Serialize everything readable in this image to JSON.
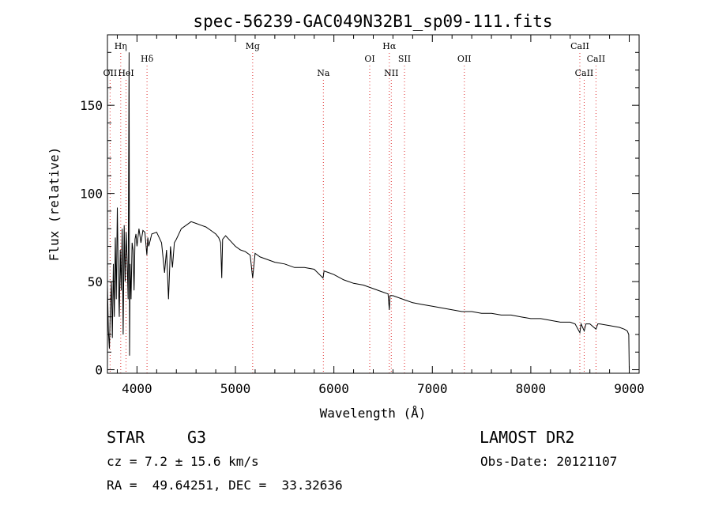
{
  "chart_data": {
    "type": "line",
    "title": "spec-56239-GAC049N32B1_sp09-111.fits",
    "xlabel": "Wavelength (Å)",
    "ylabel": "Flux (relative)",
    "xlim": [
      3700,
      9100
    ],
    "ylim": [
      -2,
      190
    ],
    "xticks": [
      4000,
      5000,
      6000,
      7000,
      8000,
      9000
    ],
    "yticks": [
      0,
      50,
      100,
      150
    ],
    "line_color": "#000000",
    "marker_color": "#e03030",
    "spectral_lines": [
      {
        "label": "OII",
        "x": 3727,
        "row": 3
      },
      {
        "label": "Hη",
        "x": 3835,
        "row": 1
      },
      {
        "label": "HeI",
        "x": 3889,
        "row": 3
      },
      {
        "label": "Hδ",
        "x": 4102,
        "row": 2
      },
      {
        "label": "Mg",
        "x": 5175,
        "row": 1
      },
      {
        "label": "Na",
        "x": 5893,
        "row": 3
      },
      {
        "label": "OI",
        "x": 6364,
        "row": 2
      },
      {
        "label": "Hα",
        "x": 6563,
        "row": 1
      },
      {
        "label": "NII",
        "x": 6583,
        "row": 3
      },
      {
        "label": "SII",
        "x": 6717,
        "row": 2
      },
      {
        "label": "OII",
        "x": 7325,
        "row": 2
      },
      {
        "label": "CaII",
        "x": 8498,
        "row": 1
      },
      {
        "label": "CaII",
        "x": 8542,
        "row": 3
      },
      {
        "label": "CaII",
        "x": 8662,
        "row": 2
      }
    ],
    "series": [
      {
        "name": "flux",
        "x": [
          3700,
          3710,
          3720,
          3730,
          3740,
          3750,
          3760,
          3770,
          3780,
          3790,
          3800,
          3810,
          3820,
          3830,
          3840,
          3850,
          3860,
          3870,
          3880,
          3890,
          3900,
          3910,
          3920,
          3925,
          3930,
          3940,
          3950,
          3960,
          3970,
          3980,
          3990,
          4000,
          4020,
          4040,
          4060,
          4080,
          4100,
          4110,
          4120,
          4150,
          4200,
          4250,
          4280,
          4300,
          4320,
          4340,
          4360,
          4380,
          4400,
          4450,
          4500,
          4550,
          4600,
          4650,
          4700,
          4750,
          4800,
          4830,
          4850,
          4861,
          4870,
          4900,
          4950,
          5000,
          5050,
          5100,
          5150,
          5175,
          5200,
          5250,
          5300,
          5400,
          5500,
          5600,
          5700,
          5800,
          5890,
          5900,
          5950,
          6000,
          6100,
          6200,
          6300,
          6400,
          6500,
          6550,
          6563,
          6570,
          6600,
          6700,
          6800,
          6900,
          7000,
          7100,
          7200,
          7300,
          7400,
          7500,
          7600,
          7700,
          7800,
          7900,
          8000,
          8100,
          8200,
          8300,
          8400,
          8450,
          8498,
          8510,
          8542,
          8560,
          8600,
          8662,
          8680,
          8700,
          8800,
          8900,
          8950,
          8980,
          8995,
          9000
        ],
        "y": [
          48,
          22,
          12,
          35,
          50,
          18,
          60,
          30,
          75,
          40,
          92,
          55,
          30,
          68,
          45,
          80,
          20,
          82,
          50,
          78,
          62,
          40,
          180,
          8,
          60,
          40,
          72,
          68,
          45,
          74,
          77,
          70,
          80,
          72,
          79,
          78,
          65,
          75,
          70,
          77,
          78,
          72,
          55,
          68,
          40,
          70,
          58,
          72,
          74,
          80,
          82,
          84,
          83,
          82,
          81,
          79,
          77,
          75,
          72,
          52,
          74,
          76,
          73,
          70,
          68,
          67,
          65,
          52,
          66,
          64,
          63,
          61,
          60,
          58,
          58,
          57,
          52,
          56,
          55,
          54,
          51,
          49,
          48,
          46,
          44,
          43,
          34,
          42,
          42,
          40,
          38,
          37,
          36,
          35,
          34,
          33,
          33,
          32,
          32,
          31,
          31,
          30,
          29,
          29,
          28,
          27,
          27,
          26,
          21,
          26,
          22,
          26,
          26,
          23,
          26,
          26,
          25,
          24,
          23,
          22,
          20,
          0
        ]
      }
    ]
  },
  "info": {
    "obj_class": "STAR",
    "subclass": "G3",
    "survey": "LAMOST DR2",
    "cz": "cz = 7.2 ± 15.6 km/s",
    "obs_date": "Obs-Date: 20121107",
    "coords": "RA =  49.64251, DEC =  33.32636"
  }
}
